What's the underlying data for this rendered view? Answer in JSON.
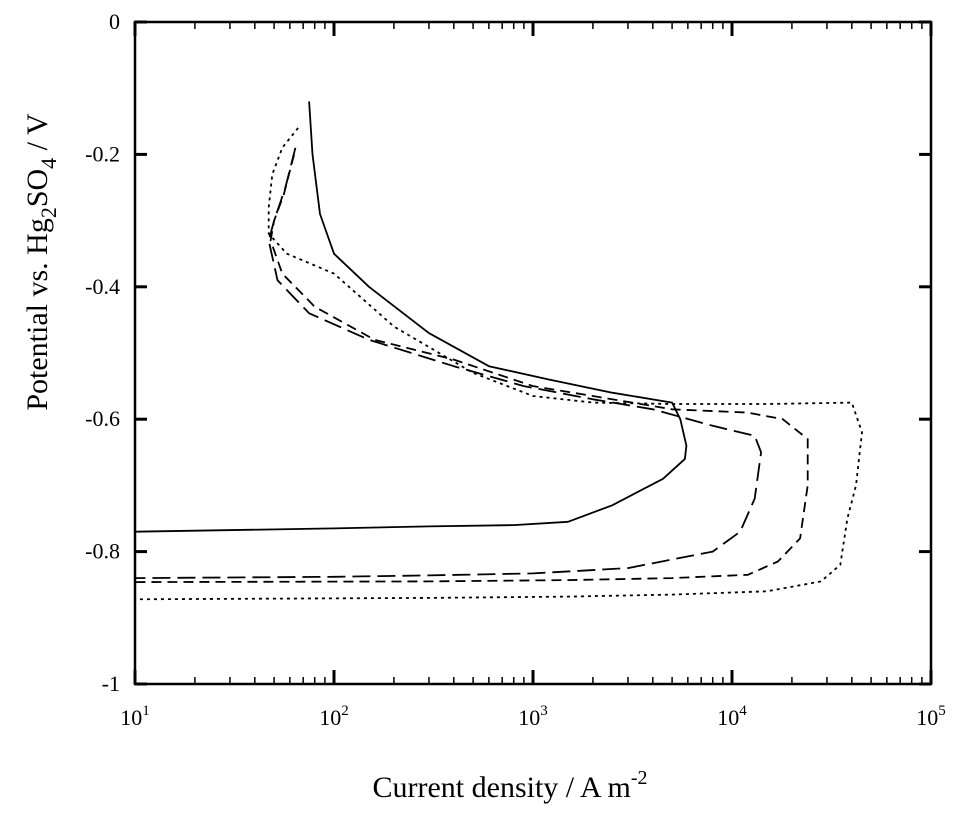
{
  "chart_data": {
    "type": "line",
    "xlabel": "Current density / A m",
    "xlabel_sup": "-2",
    "ylabel_parts": [
      "Potential vs. Hg",
      "2",
      "SO",
      "4",
      " / V"
    ],
    "x_scale": "log",
    "xlim": [
      10,
      100000
    ],
    "ylim": [
      -1,
      0
    ],
    "x_ticks": [
      {
        "value": 10,
        "base": "10",
        "exp": "1"
      },
      {
        "value": 100,
        "base": "10",
        "exp": "2"
      },
      {
        "value": 1000,
        "base": "10",
        "exp": "3"
      },
      {
        "value": 10000,
        "base": "10",
        "exp": "4"
      },
      {
        "value": 100000,
        "base": "10",
        "exp": "5"
      }
    ],
    "y_ticks": [
      {
        "value": 0,
        "label": "0"
      },
      {
        "value": -0.2,
        "label": "-0.2"
      },
      {
        "value": -0.4,
        "label": "-0.4"
      },
      {
        "value": -0.6,
        "label": "-0.6"
      },
      {
        "value": -0.8,
        "label": "-0.8"
      },
      {
        "value": -1,
        "label": "-1"
      }
    ],
    "grid": false,
    "legend": "none",
    "line_color": "#000000",
    "series": [
      {
        "style": "solid",
        "points": [
          [
            75,
            -0.12
          ],
          [
            78,
            -0.2
          ],
          [
            85,
            -0.29
          ],
          [
            100,
            -0.35
          ],
          [
            150,
            -0.4
          ],
          [
            300,
            -0.47
          ],
          [
            600,
            -0.52
          ],
          [
            1200,
            -0.54
          ],
          [
            2500,
            -0.56
          ],
          [
            5000,
            -0.575
          ],
          [
            5500,
            -0.6
          ],
          [
            5900,
            -0.64
          ],
          [
            5800,
            -0.66
          ],
          [
            4500,
            -0.69
          ],
          [
            2500,
            -0.73
          ],
          [
            1500,
            -0.755
          ],
          [
            800,
            -0.76
          ],
          [
            300,
            -0.762
          ],
          [
            100,
            -0.765
          ],
          [
            10,
            -0.77
          ]
        ]
      },
      {
        "style": "long-dash",
        "points": [
          [
            64,
            -0.19
          ],
          [
            57,
            -0.25
          ],
          [
            50,
            -0.3
          ],
          [
            47,
            -0.33
          ],
          [
            52,
            -0.39
          ],
          [
            75,
            -0.44
          ],
          [
            150,
            -0.48
          ],
          [
            400,
            -0.52
          ],
          [
            900,
            -0.55
          ],
          [
            2000,
            -0.57
          ],
          [
            4000,
            -0.585
          ],
          [
            8000,
            -0.61
          ],
          [
            13000,
            -0.625
          ],
          [
            14000,
            -0.65
          ],
          [
            13000,
            -0.72
          ],
          [
            11000,
            -0.77
          ],
          [
            8000,
            -0.8
          ],
          [
            3000,
            -0.825
          ],
          [
            1000,
            -0.833
          ],
          [
            300,
            -0.836
          ],
          [
            100,
            -0.838
          ],
          [
            10,
            -0.84
          ]
        ]
      },
      {
        "style": "short-dash",
        "points": [
          [
            63,
            -0.2
          ],
          [
            56,
            -0.26
          ],
          [
            50,
            -0.3
          ],
          [
            48,
            -0.33
          ],
          [
            55,
            -0.38
          ],
          [
            80,
            -0.43
          ],
          [
            160,
            -0.48
          ],
          [
            400,
            -0.51
          ],
          [
            1000,
            -0.55
          ],
          [
            2000,
            -0.565
          ],
          [
            5000,
            -0.585
          ],
          [
            12000,
            -0.59
          ],
          [
            18000,
            -0.6
          ],
          [
            24000,
            -0.63
          ],
          [
            24000,
            -0.7
          ],
          [
            22000,
            -0.78
          ],
          [
            17000,
            -0.815
          ],
          [
            12000,
            -0.835
          ],
          [
            5000,
            -0.84
          ],
          [
            1500,
            -0.843
          ],
          [
            300,
            -0.845
          ],
          [
            10,
            -0.846
          ]
        ]
      },
      {
        "style": "dotted",
        "points": [
          [
            66,
            -0.16
          ],
          [
            55,
            -0.19
          ],
          [
            49,
            -0.23
          ],
          [
            47,
            -0.28
          ],
          [
            47,
            -0.32
          ],
          [
            58,
            -0.35
          ],
          [
            100,
            -0.38
          ],
          [
            200,
            -0.46
          ],
          [
            500,
            -0.53
          ],
          [
            1000,
            -0.565
          ],
          [
            2000,
            -0.575
          ],
          [
            5000,
            -0.577
          ],
          [
            15000,
            -0.577
          ],
          [
            40000,
            -0.575
          ],
          [
            45000,
            -0.62
          ],
          [
            42000,
            -0.7
          ],
          [
            38000,
            -0.75
          ],
          [
            35000,
            -0.82
          ],
          [
            28000,
            -0.845
          ],
          [
            15000,
            -0.86
          ],
          [
            5000,
            -0.865
          ],
          [
            1500,
            -0.868
          ],
          [
            300,
            -0.87
          ],
          [
            10,
            -0.872
          ]
        ]
      }
    ]
  }
}
